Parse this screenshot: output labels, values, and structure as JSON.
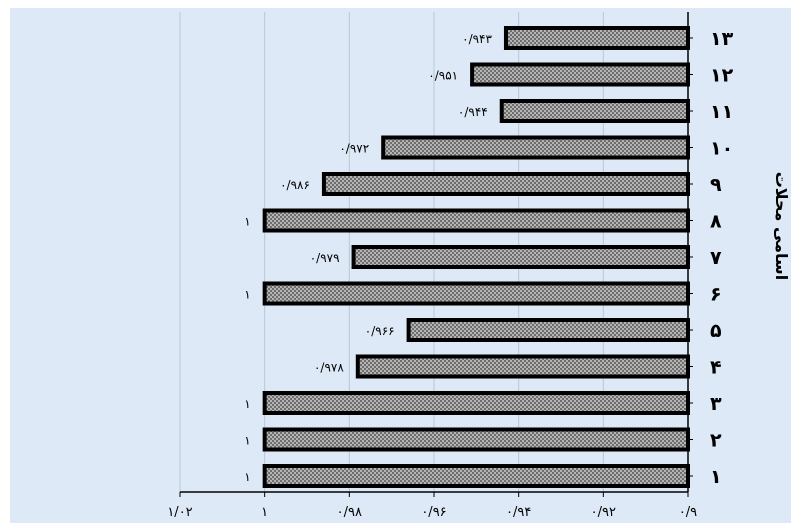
{
  "chart_data": {
    "type": "bar",
    "orientation": "horizontal",
    "x_reversed": true,
    "ylabel": "اسامی محلات",
    "xlim": [
      0.9,
      1.02
    ],
    "xticks": [
      "۰/۹",
      "۰/۹۲",
      "۰/۹۴",
      "۰/۹۶",
      "۰/۹۸",
      "۱",
      "۱/۰۲"
    ],
    "categories": [
      "۱",
      "۲",
      "۳",
      "۴",
      "۵",
      "۶",
      "۷",
      "۸",
      "۹",
      "۱۰",
      "۱۱",
      "۱۲",
      "۱۳"
    ],
    "values": [
      1,
      1,
      1,
      0.978,
      0.966,
      1,
      0.979,
      1,
      0.986,
      0.972,
      0.944,
      0.951,
      0.943
    ],
    "data_labels": [
      "۱",
      "۱",
      "۱",
      "۰/۹۷۸",
      "۰/۹۶۶",
      "۱",
      "۰/۹۷۹",
      "۱",
      "۰/۹۸۶",
      "۰/۹۷۲",
      "۰/۹۴۴",
      "۰/۹۵۱",
      "۰/۹۴۳"
    ],
    "grid": true,
    "colors": {
      "plot_background": "#dde9f6",
      "bar_fill": "#9a9a9a",
      "bar_stroke": "#000000",
      "grid": "#b9c6d4",
      "axis": "#000000",
      "text": "#000000"
    }
  }
}
